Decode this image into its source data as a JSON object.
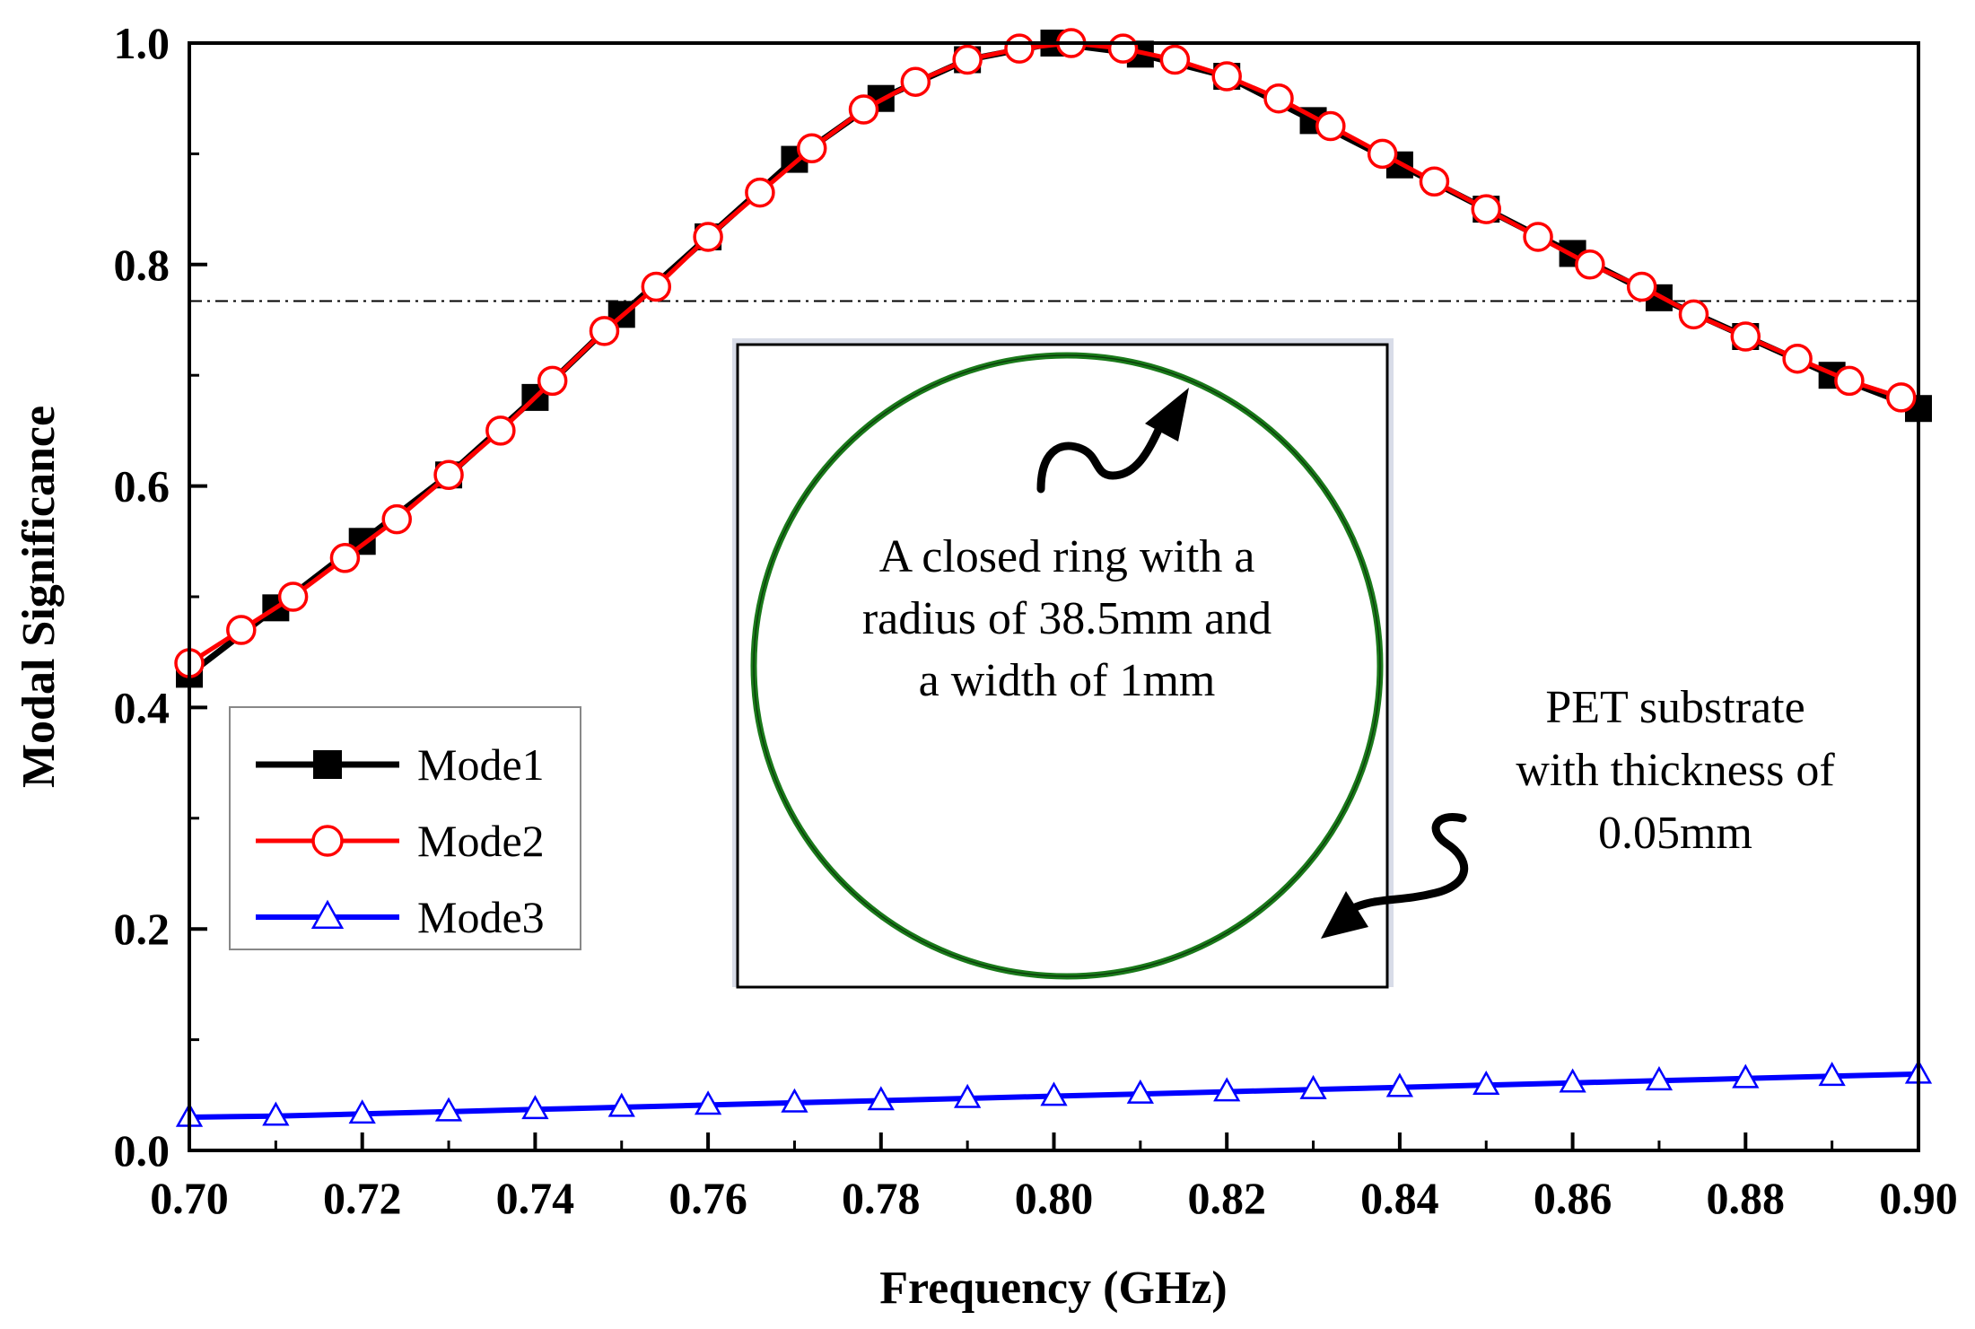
{
  "chart_data": {
    "type": "line",
    "title": "",
    "xlabel": "Frequency (GHz)",
    "ylabel": "Modal Significance",
    "xlim": [
      0.7,
      0.9
    ],
    "ylim": [
      0.0,
      1.0
    ],
    "xticks": [
      "0.70",
      "0.72",
      "0.74",
      "0.76",
      "0.78",
      "0.80",
      "0.82",
      "0.84",
      "0.86",
      "0.88",
      "0.90"
    ],
    "yticks": [
      "0.0",
      "0.2",
      "0.4",
      "0.6",
      "0.8",
      "1.0"
    ],
    "threshold": 0.767,
    "colors": {
      "mode1": "#000000",
      "mode2": "#ff0000",
      "mode3": "#0000ff",
      "ring": "#1a7a1a"
    },
    "series": [
      {
        "name": "Mode1",
        "marker": "square",
        "x": [
          0.7,
          0.71,
          0.72,
          0.73,
          0.74,
          0.75,
          0.76,
          0.77,
          0.78,
          0.79,
          0.8,
          0.81,
          0.82,
          0.83,
          0.84,
          0.85,
          0.86,
          0.87,
          0.88,
          0.89,
          0.9
        ],
        "values": [
          0.43,
          0.49,
          0.55,
          0.61,
          0.68,
          0.755,
          0.825,
          0.895,
          0.95,
          0.985,
          1.0,
          0.99,
          0.97,
          0.93,
          0.89,
          0.85,
          0.81,
          0.77,
          0.735,
          0.7,
          0.67
        ]
      },
      {
        "name": "Mode2",
        "marker": "circle",
        "x": [
          0.7,
          0.706,
          0.712,
          0.718,
          0.724,
          0.73,
          0.736,
          0.742,
          0.748,
          0.754,
          0.76,
          0.766,
          0.772,
          0.778,
          0.784,
          0.79,
          0.796,
          0.802,
          0.808,
          0.814,
          0.82,
          0.826,
          0.832,
          0.838,
          0.844,
          0.85,
          0.856,
          0.862,
          0.868,
          0.874,
          0.88,
          0.886,
          0.892,
          0.898
        ],
        "values": [
          0.44,
          0.47,
          0.5,
          0.535,
          0.57,
          0.61,
          0.65,
          0.695,
          0.74,
          0.78,
          0.825,
          0.865,
          0.905,
          0.94,
          0.965,
          0.985,
          0.995,
          1.0,
          0.995,
          0.985,
          0.97,
          0.95,
          0.925,
          0.9,
          0.875,
          0.85,
          0.825,
          0.8,
          0.78,
          0.755,
          0.735,
          0.715,
          0.695,
          0.68
        ]
      },
      {
        "name": "Mode3",
        "marker": "triangle",
        "x": [
          0.7,
          0.71,
          0.72,
          0.73,
          0.74,
          0.75,
          0.76,
          0.77,
          0.78,
          0.79,
          0.8,
          0.81,
          0.82,
          0.83,
          0.84,
          0.85,
          0.86,
          0.87,
          0.88,
          0.89,
          0.9
        ],
        "values": [
          0.03,
          0.031,
          0.033,
          0.035,
          0.037,
          0.039,
          0.041,
          0.043,
          0.045,
          0.047,
          0.049,
          0.051,
          0.053,
          0.055,
          0.057,
          0.059,
          0.061,
          0.063,
          0.065,
          0.067,
          0.069
        ]
      }
    ],
    "legend_position": "lower-left",
    "annotations": {
      "ring_label": [
        "A closed ring with a",
        "radius of 38.5mm and",
        "a width of 1mm"
      ],
      "substrate_label": [
        "PET substrate",
        "with  thickness of",
        "0.05mm"
      ]
    }
  }
}
